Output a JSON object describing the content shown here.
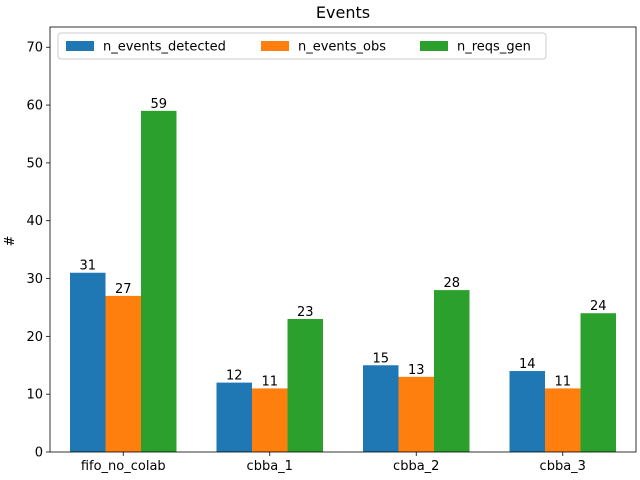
{
  "chart_data": {
    "type": "bar",
    "title": "Events",
    "xlabel": "",
    "ylabel": "#",
    "ylim": [
      0,
      73.5
    ],
    "yticks": [
      0,
      10,
      20,
      30,
      40,
      50,
      60,
      70
    ],
    "grid": false,
    "legend_position": "top, horizontal",
    "categories": [
      "fifo_no_colab",
      "cbba_1",
      "cbba_2",
      "cbba_3"
    ],
    "series": [
      {
        "name": "n_events_detected",
        "color": "#1f77b4",
        "values": [
          31,
          12,
          15,
          14
        ]
      },
      {
        "name": "n_events_obs",
        "color": "#ff7f0e",
        "values": [
          27,
          11,
          13,
          11
        ]
      },
      {
        "name": "n_reqs_gen",
        "color": "#2ca02c",
        "values": [
          59,
          23,
          28,
          24
        ]
      }
    ]
  }
}
